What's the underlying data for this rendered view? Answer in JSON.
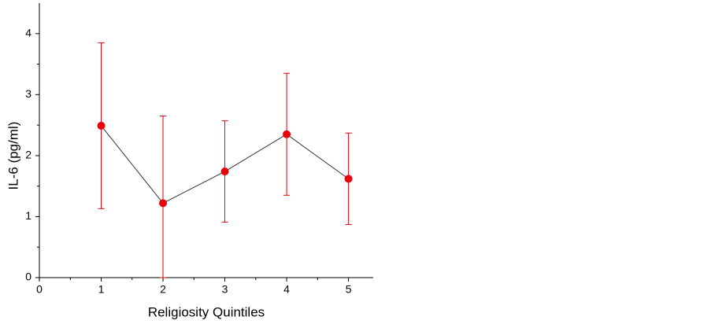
{
  "chart_data": {
    "type": "line",
    "x_label": "Religiosity Quintiles",
    "y_label": "IL-6 (pg/ml)",
    "x": [
      1,
      2,
      3,
      4,
      5
    ],
    "series": [
      {
        "color": "#e8000b",
        "line_color": "#333333",
        "values": [
          2.49,
          1.22,
          1.74,
          2.35,
          1.62
        ],
        "errors": [
          1.36,
          1.43,
          0.83,
          1.0,
          0.75
        ]
      }
    ],
    "xlim": [
      0,
      5.4
    ],
    "xticks": [
      0,
      1,
      2,
      3,
      4,
      5
    ],
    "ylim": [
      0,
      4.5
    ],
    "yticks": [
      0,
      1,
      2,
      3,
      4
    ]
  }
}
